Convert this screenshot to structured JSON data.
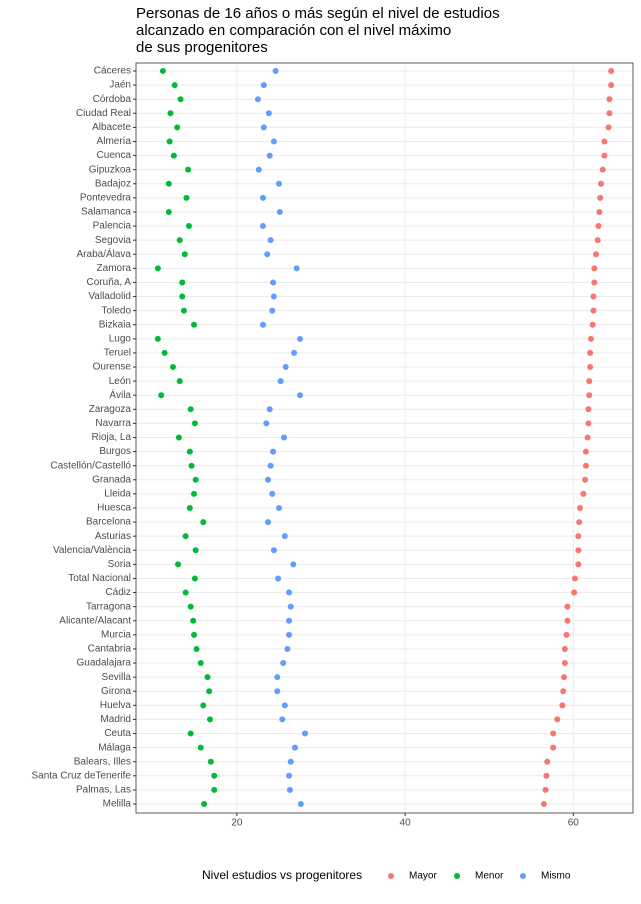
{
  "chart_data": {
    "type": "dot",
    "title": [
      "Personas de 16 años o más según el nivel de estudios",
      "alcanzado en comparación con el nivel máximo",
      "de sus progenitores"
    ],
    "legend_title": "Nivel estudios vs progenitores",
    "legend_position": "bottom",
    "grid": true,
    "xlim": [
      8,
      67.1
    ],
    "xticks": [
      20,
      40,
      60
    ],
    "categories": [
      "Cáceres",
      "Jaén",
      "Córdoba",
      "Ciudad Real",
      "Albacete",
      "Almería",
      "Cuenca",
      "Gipuzkoa",
      "Badajoz",
      "Pontevedra",
      "Salamanca",
      "Palencia",
      "Segovia",
      "Araba/Álava",
      "Zamora",
      "Coruña, A",
      "Valladolid",
      "Toledo",
      "Bizkaia",
      "Lugo",
      "Teruel",
      "Ourense",
      "León",
      "Ávila",
      "Zaragoza",
      "Navarra",
      "Rioja, La",
      "Burgos",
      "Castellón/Castelló",
      "Granada",
      "Lleida",
      "Huesca",
      "Barcelona",
      "Asturias",
      "Valencia/València",
      "Soria",
      "Total Nacional",
      "Cádiz",
      "Tarragona",
      "Alicante/Alacant",
      "Murcia",
      "Cantabria",
      "Guadalajara",
      "Sevilla",
      "Girona",
      "Huelva",
      "Madrid",
      "Ceuta",
      "Málaga",
      "Balears, Illes",
      "Santa Cruz deTenerife",
      "Palmas, Las",
      "Melilla"
    ],
    "series": [
      {
        "name": "Mayor",
        "color": "#F8766D",
        "values": [
          64.5,
          64.5,
          64.3,
          64.3,
          64.2,
          63.7,
          63.7,
          63.5,
          63.3,
          63.2,
          63.1,
          63,
          62.9,
          62.7,
          62.5,
          62.5,
          62.4,
          62.4,
          62.3,
          62.1,
          62,
          62,
          61.9,
          61.9,
          61.8,
          61.8,
          61.7,
          61.5,
          61.5,
          61.4,
          61.2,
          60.8,
          60.7,
          60.6,
          60.6,
          60.6,
          60.2,
          60.1,
          59.3,
          59.3,
          59.2,
          59,
          59,
          58.9,
          58.8,
          58.7,
          58.1,
          57.6,
          57.6,
          56.9,
          56.8,
          56.7,
          56.5
        ]
      },
      {
        "name": "Menor",
        "color": "#00BA38",
        "values": [
          11.2,
          12.6,
          13.3,
          12.1,
          12.9,
          12,
          12.5,
          14.2,
          11.9,
          14,
          11.9,
          14.3,
          13.2,
          13.8,
          10.6,
          13.5,
          13.5,
          13.7,
          14.9,
          10.6,
          11.4,
          12.4,
          13.2,
          11,
          14.5,
          15,
          13.1,
          14.4,
          14.6,
          15.1,
          14.9,
          14.4,
          16,
          13.9,
          15.1,
          13,
          15,
          13.9,
          14.5,
          14.8,
          14.9,
          15.2,
          15.7,
          16.5,
          16.7,
          16,
          16.8,
          14.5,
          15.7,
          16.9,
          17.3,
          17.3,
          16.1
        ]
      },
      {
        "name": "Mismo",
        "color": "#619CFF",
        "values": [
          24.6,
          23.2,
          22.5,
          23.8,
          23.2,
          24.4,
          23.9,
          22.6,
          25,
          23.1,
          25.1,
          23.1,
          24,
          23.6,
          27.1,
          24.3,
          24.4,
          24.2,
          23.1,
          27.5,
          26.8,
          25.8,
          25.2,
          27.5,
          23.9,
          23.5,
          25.6,
          24.3,
          24,
          23.7,
          24.2,
          25,
          23.7,
          25.7,
          24.4,
          26.7,
          24.9,
          26.2,
          26.4,
          26.2,
          26.2,
          26,
          25.5,
          24.8,
          24.8,
          25.7,
          25.4,
          28.1,
          26.9,
          26.4,
          26.2,
          26.3,
          27.6
        ]
      }
    ]
  }
}
